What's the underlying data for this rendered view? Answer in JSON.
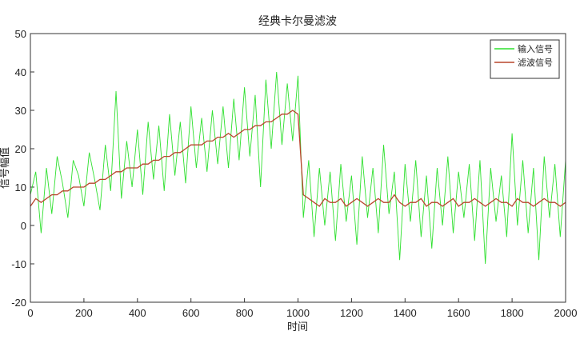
{
  "chart_data": {
    "type": "line",
    "title": "经典卡尔曼滤波",
    "x_label": "时间",
    "y_label": "信号幅值",
    "x": [
      0,
      20,
      40,
      60,
      80,
      100,
      120,
      140,
      160,
      180,
      200,
      220,
      240,
      260,
      280,
      300,
      320,
      340,
      360,
      380,
      400,
      420,
      440,
      460,
      480,
      500,
      520,
      540,
      560,
      580,
      600,
      620,
      640,
      660,
      680,
      700,
      720,
      740,
      760,
      780,
      800,
      820,
      840,
      860,
      880,
      900,
      920,
      940,
      960,
      980,
      1000,
      1020,
      1040,
      1060,
      1080,
      1100,
      1120,
      1140,
      1160,
      1180,
      1200,
      1220,
      1240,
      1260,
      1280,
      1300,
      1320,
      1340,
      1360,
      1380,
      1400,
      1420,
      1440,
      1460,
      1480,
      1500,
      1520,
      1540,
      1560,
      1580,
      1600,
      1620,
      1640,
      1660,
      1680,
      1700,
      1720,
      1740,
      1760,
      1780,
      1800,
      1820,
      1840,
      1860,
      1880,
      1900,
      1920,
      1940,
      1960,
      1980,
      2000
    ],
    "series": [
      {
        "name": "输入信号",
        "color": "#2fe02f",
        "values": [
          8,
          14,
          -2,
          15,
          3,
          18,
          11,
          2,
          17,
          13,
          5,
          19,
          12,
          4,
          21,
          9,
          35,
          7,
          22,
          10,
          25,
          8,
          27,
          12,
          26,
          9,
          29,
          13,
          27,
          11,
          31,
          15,
          28,
          14,
          30,
          16,
          31,
          15,
          33,
          17,
          36,
          18,
          34,
          10,
          38,
          20,
          40,
          21,
          37,
          22,
          39,
          2,
          17,
          -3,
          15,
          0,
          14,
          -4,
          16,
          1,
          13,
          -5,
          18,
          2,
          15,
          -2,
          21,
          3,
          14,
          -9,
          16,
          1,
          17,
          -3,
          13,
          -6,
          15,
          0,
          18,
          -2,
          14,
          2,
          16,
          -4,
          17,
          -10,
          15,
          1,
          13,
          -3,
          24,
          0,
          17,
          -2,
          15,
          -9,
          18,
          2,
          16,
          -3,
          17
        ]
      },
      {
        "name": "滤波信号",
        "color": "#b8452c",
        "values": [
          5,
          7,
          6,
          7,
          8,
          8,
          9,
          9,
          10,
          10,
          10,
          11,
          11,
          12,
          12,
          13,
          14,
          14,
          15,
          15,
          15,
          16,
          16,
          17,
          17,
          18,
          18,
          19,
          19,
          20,
          21,
          21,
          21,
          22,
          22,
          23,
          23,
          24,
          23,
          24,
          25,
          25,
          26,
          26,
          27,
          27,
          28,
          29,
          29,
          30,
          29,
          8,
          7,
          6,
          5,
          7,
          6,
          6,
          7,
          5,
          6,
          7,
          6,
          5,
          6,
          7,
          6,
          6,
          8,
          6,
          5,
          6,
          6,
          7,
          5,
          6,
          6,
          5,
          6,
          7,
          5,
          6,
          6,
          7,
          6,
          5,
          6,
          7,
          6,
          6,
          5,
          7,
          6,
          6,
          5,
          6,
          7,
          6,
          6,
          5,
          6
        ]
      }
    ],
    "xlim": [
      0,
      2000
    ],
    "xticks": [
      0,
      200,
      400,
      600,
      800,
      1000,
      1200,
      1400,
      1600,
      1800,
      2000
    ],
    "ylim": [
      -20,
      50
    ],
    "yticks": [
      -20,
      -10,
      0,
      10,
      20,
      30,
      40,
      50
    ],
    "grid": false,
    "legend": "upper right"
  }
}
